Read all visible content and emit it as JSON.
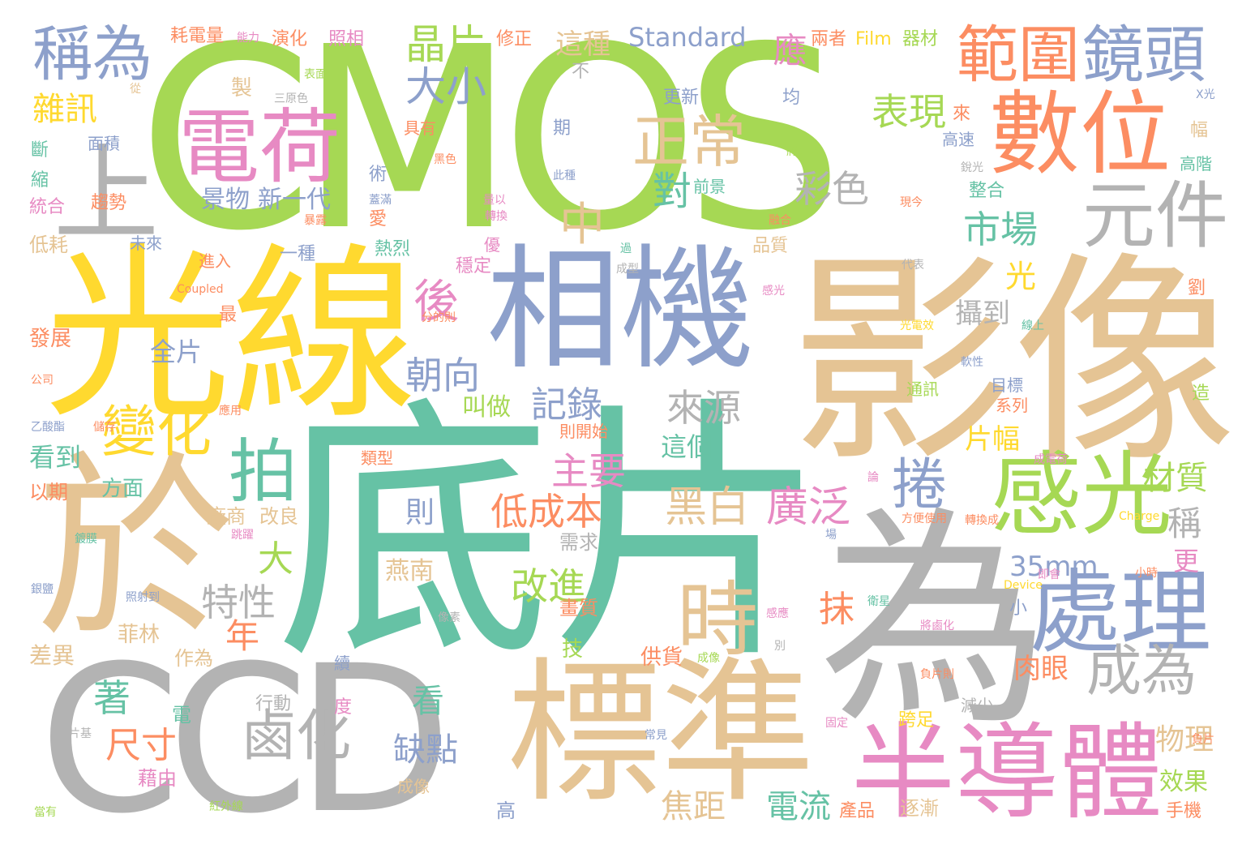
{
  "palette": {
    "green": "#a6d854",
    "teal": "#66c2a5",
    "orange": "#fc8d62",
    "blue": "#8da0cb",
    "pink": "#e78ac3",
    "yellow": "#ffd92f",
    "tan": "#e5c494",
    "gray": "#b3b3b3"
  },
  "words": {
    "cmos": "CMOS",
    "ccd": "CCD",
    "dipian": "底片",
    "yingxiang": "影像",
    "guangxian": "光線",
    "wei": "為",
    "yu": "於",
    "xiangji": "相機",
    "biaozhun": "標準",
    "bandaoti": "半導體",
    "shuwei": "數位",
    "dianhe": "電荷",
    "ganguang": "感光",
    "chuli": "處理",
    "jingtou": "鏡頭",
    "fanwei": "範圍",
    "yuanjian": "元件",
    "chengwei": "稱為",
    "shang": "上",
    "zhengchang": "正常",
    "shi": "時",
    "pai": "拍",
    "bianhua": "變化",
    "chengwei2": "成為",
    "luhua": "鹵化",
    "juan": "捲",
    "jingpian": "晶片",
    "daxiao": "大小",
    "biaoxian": "表現",
    "shichang": "市場",
    "caise": "彩色",
    "hou": "後",
    "zhong": "中",
    "dui": "對",
    "heibai": "黑白",
    "guangfan": "廣泛",
    "zhuyao": "主要",
    "dichengben": "低成本",
    "gaijin": "改進",
    "laiyuan": "來源",
    "jilu": "記錄",
    "chaoxiang": "朝向",
    "texing": "特性",
    "quanpian": "全片",
    "jingwu": "景物",
    "xinyidai": "新一代",
    "standard": "Standard",
    "zhezhong": "這種",
    "ying": "應",
    "zaxun": "雜訊",
    "mm35": "35mm",
    "caizhi": "材質",
    "cheng": "稱",
    "geng": "更",
    "mo": "抹",
    "guang": "光",
    "shedao": "攝到",
    "pianfu": "片幅",
    "zhege": "這個",
    "rouyan": "肉眼",
    "wuli": "物理",
    "xiaoguo": "效果",
    "dianliu": "電流",
    "jiaoju": "焦距",
    "quedian": "缺點",
    "kan": "看",
    "chicun": "尺寸",
    "zhu": "著",
    "da": "大",
    "nian": "年",
    "ze": "則",
    "yannan": "燕南",
    "jiaozuo": "叫做",
    "kandao": "看到",
    "fangmian": "方面",
    "changshang": "廠商",
    "gailiang": "改良",
    "xuqiu": "需求",
    "feilin": "菲林",
    "zuowei": "作為",
    "chayi": "差異",
    "fazhan": "發展",
    "yiqi": "以期",
    "gonghuo": "供貨",
    "huazhi": "畫質",
    "ji": "技",
    "xingdong": "行動",
    "chengxiang": "成像",
    "jieyou": "藉由",
    "dian": "電",
    "gao": "高",
    "zhubu": "逐漸",
    "chanpin": "產品",
    "shouji": "手機",
    "kuazu": "跨足",
    "jianshao": "減少",
    "du": "度",
    "xu": "續",
    "haodianliang": "耗電量",
    "yanhua": "演化",
    "zhaoxiang": "照相",
    "xiuzheng": "修正",
    "liangzhe": "兩者",
    "film": "Film",
    "qicai": "器材",
    "zhi": "製",
    "bu": "不",
    "gengxin": "更新",
    "jun": "均",
    "juyou": "具有",
    "qi": "期",
    "mianji": "面積",
    "duan": "斷",
    "suo": "縮",
    "tongho": "統合",
    "qushi": "趨勢",
    "shu": "術",
    "qianjing": "前景",
    "zhenghe": "整合",
    "pinzhi": "品質",
    "jinru": "進入",
    "weilai": "未來",
    "yizhong": "一種",
    "relie": "熱烈",
    "you": "優",
    "wending": "穩定",
    "dihao": "低耗",
    "ai": "愛",
    "zui": "最",
    "liu": "劉",
    "gaosu": "高速",
    "fu": "幅",
    "gaojie": "高階",
    "tongxun": "通訊",
    "mubiao": "目標",
    "xilie": "系列",
    "zao": "造",
    "lai": "來",
    "leixing": "類型",
    "zekaishi": "則開始",
    "coupled": "Coupled",
    "charge": "Charge",
    "device": "Device",
    "xiaoc": "小",
    "xiansheng": "線上",
    "yingyong": "應用",
    "xiqi": "乙酸酯",
    "ruanxing": "軟性",
    "yuanlai": "銀鹽",
    "hongwaixian": "紅外線",
    "dangyou": "當有",
    "piancai": "片基",
    "changjian": "常見",
    "xiangsu": "像素",
    "tiaoyue": "跳躍",
    "xiangcun": "儲存",
    "gudingc": "固定",
    "pianf": "負片",
    "chengdiance": "成電荷",
    "zhuanhuancheng": "轉換成",
    "fangbianshiyong": "方便使用",
    "jiyin": "即會",
    "luhuacheng": "將鹵化",
    "pianze": "負片則",
    "xingchengdaxiao": "成型",
    "xiaoshi": "小時",
    "guangdian": "光電效",
    "daibiao": "代表",
    "ganxiang": "感光",
    "gongshi": "公司",
    "ganjuecheng": "成像",
    "fenbian": "分的則",
    "zhezhongb": "此種",
    "liangyi": "量以",
    "shuzhuan": "轉換",
    "weixing": "衛星",
    "jinhe": "融合",
    "heise": "黑色",
    "sansegu": "三原色",
    "biaomian": "表面",
    "guo": "過",
    "gaoliang": "能力",
    "congc": "從",
    "xiandai": "現今",
    "kuan": "X光",
    "ruiguang": "銳光",
    "chang": "場",
    "lun": "論",
    "zhaoshe": "照射到",
    "gaihe": "蓋滿",
    "youjiguang": "將光線",
    "xiangyu": "暴露",
    "bie": "別",
    "shuiqu": "感應",
    "jiuxian": "鍍膜"
  }
}
